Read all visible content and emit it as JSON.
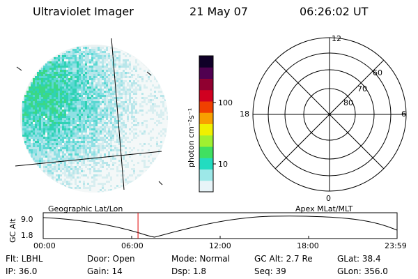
{
  "header": {
    "title": "Ultraviolet Imager",
    "date": "21 May 07",
    "time": "06:26:02 UT"
  },
  "colorbar": {
    "unit": "photon cm⁻²s⁻¹",
    "ticks": [
      {
        "label": "100",
        "value": 100
      },
      {
        "label": "10",
        "value": 10
      }
    ],
    "colors": [
      "#e8f4f8",
      "#9de8e8",
      "#22dcc0",
      "#40e060",
      "#a0f030",
      "#f0f000",
      "#f8a000",
      "#f04000",
      "#d00020",
      "#900030",
      "#500050",
      "#100028"
    ]
  },
  "polar": {
    "mlt_labels": [
      "12",
      "6",
      "0",
      "18"
    ],
    "mlat_labels": [
      "60",
      "70",
      "80"
    ]
  },
  "timeline": {
    "left_title": "Geographic Lat/Lon",
    "right_title": "Apex MLat/MLT",
    "ylabel": "GC Alt",
    "ytick_top": "9.0",
    "ytick_bottom": "1.8",
    "xticks": [
      "00:00",
      "06:00",
      "12:00",
      "18:00",
      "23:59"
    ],
    "marker_time_hours": 6.43
  },
  "status": {
    "flt": "Flt: LBHL",
    "ip": "IP: 36.0",
    "door": "Door: Open",
    "gain": "Gain: 14",
    "mode": "Mode: Normal",
    "dsp": "Dsp:    1.8",
    "gc_alt": "GC Alt: 2.7 Re",
    "seq": "Seq: 39",
    "glat": "GLat:   38.4",
    "glon": "GLon: 356.0"
  }
}
